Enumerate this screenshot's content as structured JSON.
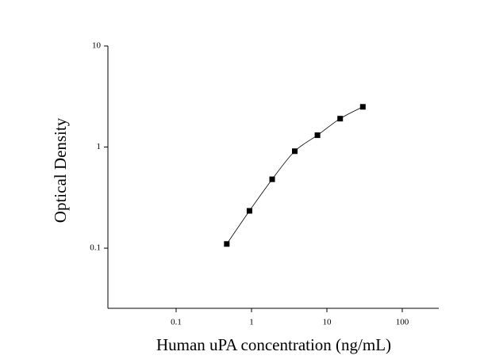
{
  "chart_data": {
    "type": "scatter",
    "x_label": "Human uPA concentration (ng/mL)",
    "y_label": "Optical Density",
    "x": [
      0.47,
      0.94,
      1.88,
      3.75,
      7.5,
      15,
      30
    ],
    "values": [
      0.11,
      0.234,
      0.48,
      0.91,
      1.31,
      1.91,
      2.5
    ],
    "color": "#000000",
    "xscale": "log",
    "yscale": "log",
    "xlim": [
      0.01245,
      305
    ],
    "ylim": [
      0.0254,
      10
    ],
    "xticks": [
      0.1,
      1,
      10,
      100
    ],
    "yticks": [
      0.1,
      1,
      10
    ],
    "fit_curve": true
  }
}
